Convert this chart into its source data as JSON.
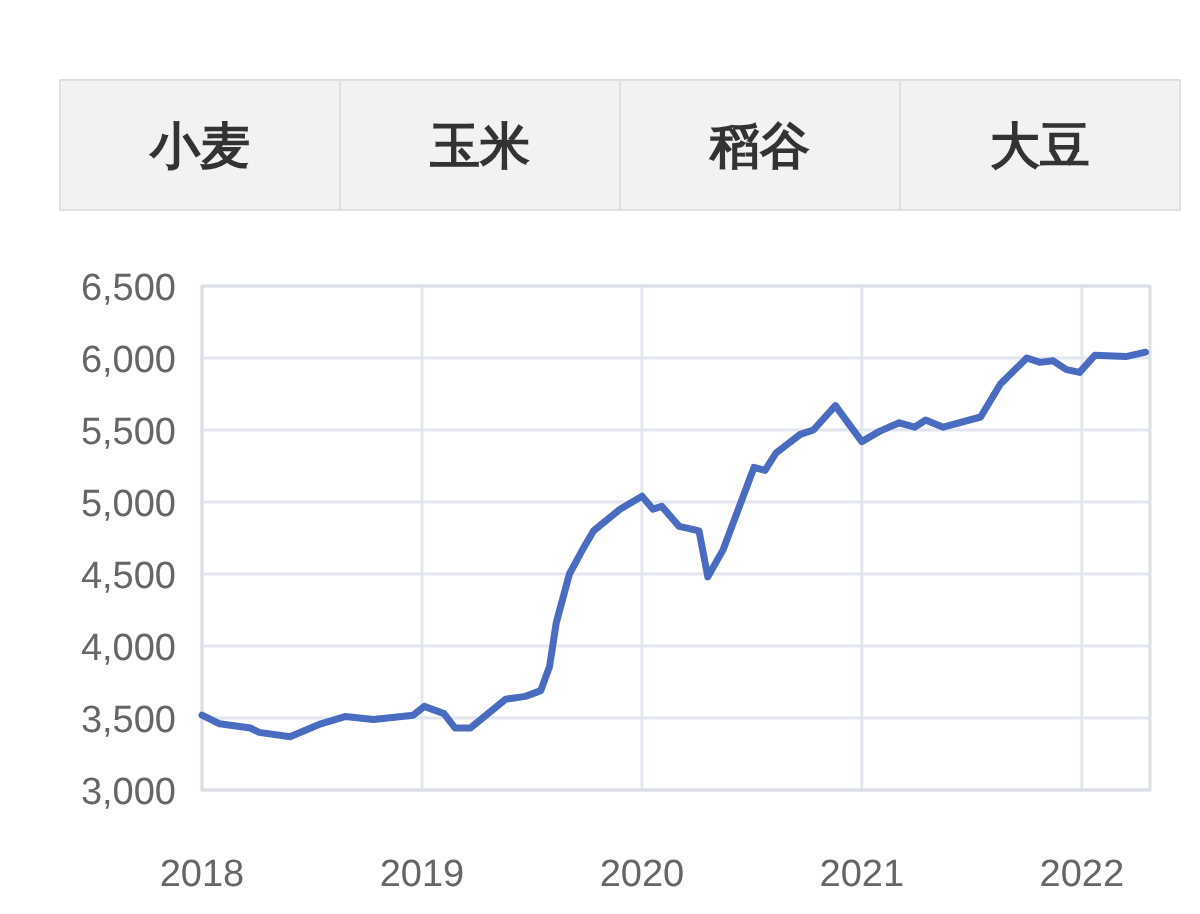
{
  "chart_data": {
    "type": "line",
    "annotations": [
      "小麦",
      "玉米",
      "稻谷",
      "大豆"
    ],
    "xlim": [
      2018,
      2022.31
    ],
    "xticks": [
      2018,
      2019,
      2020,
      2021,
      2022
    ],
    "ylim": [
      3000,
      6500
    ],
    "yticks": [
      {
        "value": 3000,
        "label": "3,000"
      },
      {
        "value": 3500,
        "label": "3,500"
      },
      {
        "value": 4000,
        "label": "4,000"
      },
      {
        "value": 4500,
        "label": "4,500"
      },
      {
        "value": 5000,
        "label": "5,000"
      },
      {
        "value": 5500,
        "label": "5,500"
      },
      {
        "value": 6000,
        "label": "6,000"
      },
      {
        "value": 6500,
        "label": "6,500"
      }
    ],
    "grid": true,
    "marker": "none",
    "line_style": "solid",
    "series": [
      {
        "color": "#4a6cc0",
        "x": [
          2018.0,
          2018.08,
          2018.22,
          2018.26,
          2018.4,
          2018.54,
          2018.65,
          2018.78,
          2018.96,
          2019.01,
          2019.1,
          2019.15,
          2019.22,
          2019.38,
          2019.47,
          2019.54,
          2019.58,
          2019.61,
          2019.67,
          2019.73,
          2019.78,
          2019.9,
          2020.0,
          2020.05,
          2020.09,
          2020.17,
          2020.26,
          2020.3,
          2020.37,
          2020.51,
          2020.56,
          2020.61,
          2020.72,
          2020.78,
          2020.88,
          2021.0,
          2021.08,
          2021.17,
          2021.24,
          2021.29,
          2021.37,
          2021.54,
          2021.63,
          2021.75,
          2021.81,
          2021.87,
          2021.93,
          2021.99,
          2022.06,
          2022.2,
          2022.29
        ],
        "values": [
          3520,
          3460,
          3430,
          3400,
          3370,
          3460,
          3510,
          3490,
          3520,
          3580,
          3530,
          3430,
          3430,
          3630,
          3650,
          3690,
          3860,
          4160,
          4500,
          4670,
          4800,
          4950,
          5040,
          4950,
          4970,
          4830,
          4800,
          4480,
          4670,
          5240,
          5220,
          5340,
          5470,
          5500,
          5670,
          5420,
          5490,
          5550,
          5520,
          5570,
          5520,
          5590,
          5820,
          6000,
          5970,
          5980,
          5920,
          5900,
          6020,
          6010,
          6040
        ]
      }
    ]
  }
}
